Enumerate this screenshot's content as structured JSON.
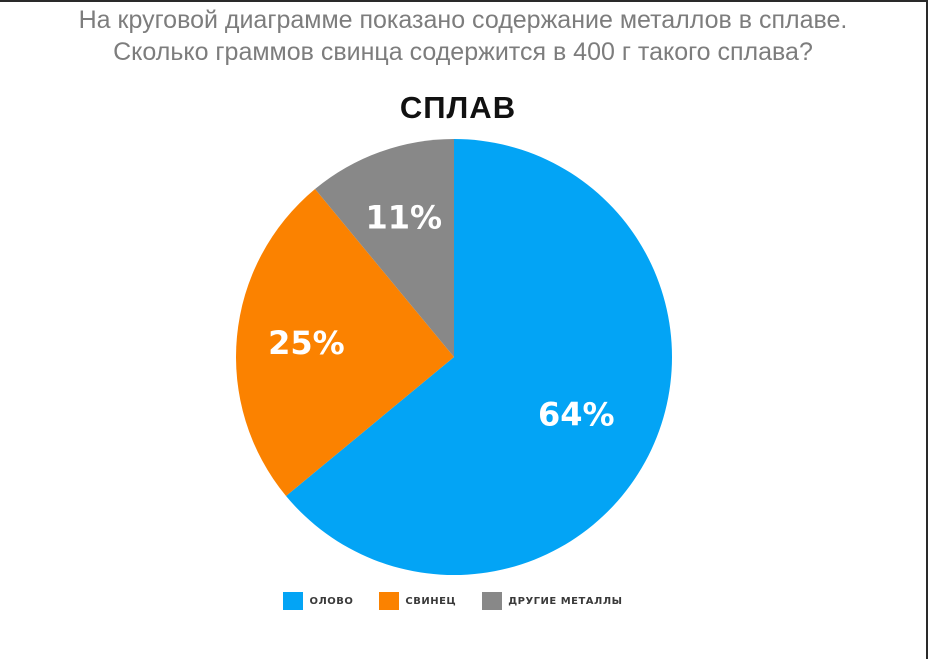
{
  "question": {
    "line1": "На круговой диаграмме показано содержание металлов в сплаве.",
    "line2": "Сколько граммов свинца содержится в 400 г такого сплава?"
  },
  "chart_data": {
    "type": "pie",
    "title": "СПЛАВ",
    "categories": [
      "ОЛОВО",
      "СВИНЕЦ",
      "ДРУГИЕ МЕТАЛЛЫ"
    ],
    "values": [
      64,
      25,
      11
    ],
    "labels": [
      "64%",
      "25%",
      "11%"
    ],
    "colors": [
      "#03a4f5",
      "#fb8200",
      "#888888"
    ],
    "legend_position": "bottom"
  }
}
